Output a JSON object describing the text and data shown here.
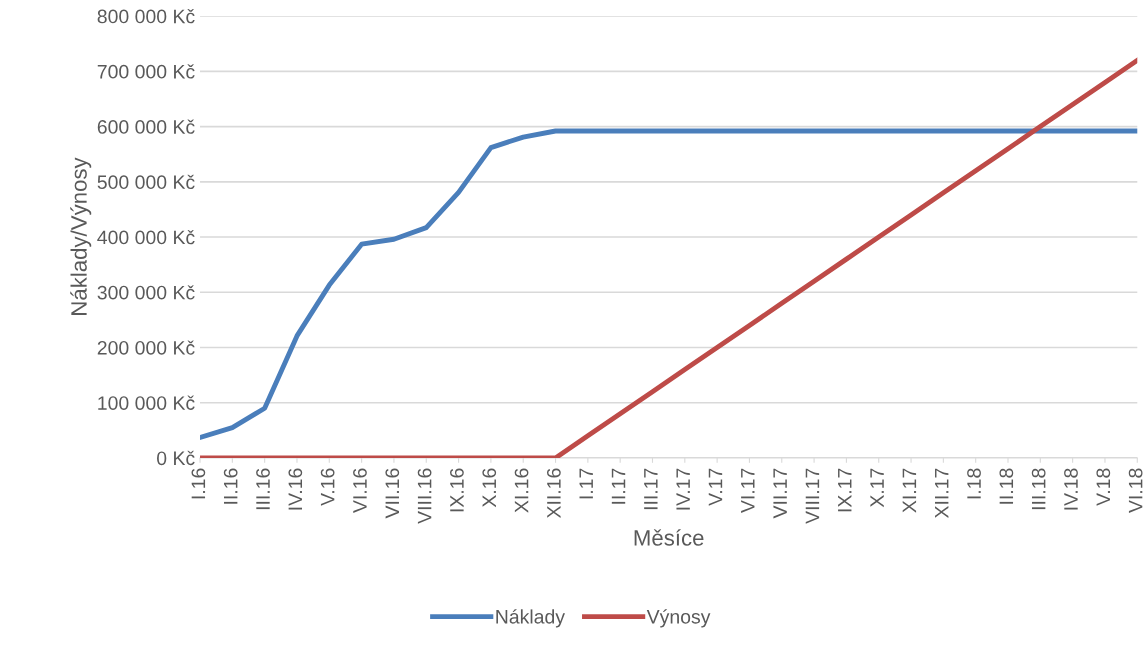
{
  "chart_data": {
    "type": "line",
    "xlabel": "Měsíce",
    "ylabel": "Náklady/Výnosy",
    "categories": [
      "I.16",
      "II.16",
      "III.16",
      "IV.16",
      "V.16",
      "VI.16",
      "VII.16",
      "VIII.16",
      "IX.16",
      "X.16",
      "XI.16",
      "XII.16",
      "I.17",
      "II.17",
      "III.17",
      "IV.17",
      "V.17",
      "VI.17",
      "VII.17",
      "VIII.17",
      "IX.17",
      "X.17",
      "XI.17",
      "XII.17",
      "I.18",
      "II.18",
      "III.18",
      "IV.18",
      "V.18",
      "VI.18"
    ],
    "series": [
      {
        "name": "Náklady",
        "color": "#4a7ebb",
        "values": [
          37000,
          55000,
          90000,
          221000,
          313000,
          387000,
          396000,
          417000,
          481000,
          562000,
          581000,
          592000,
          592000,
          592000,
          592000,
          592000,
          592000,
          592000,
          592000,
          592000,
          592000,
          592000,
          592000,
          592000,
          592000,
          592000,
          592000,
          592000,
          592000,
          592000
        ]
      },
      {
        "name": "Výnosy",
        "color": "#be4b48",
        "values": [
          0,
          0,
          0,
          0,
          0,
          0,
          0,
          0,
          0,
          0,
          0,
          0,
          40000,
          80000,
          120000,
          160000,
          200000,
          240000,
          280000,
          320000,
          360000,
          400000,
          440000,
          480000,
          520000,
          560000,
          600000,
          640000,
          680000,
          720000
        ]
      }
    ],
    "ylim": [
      0,
      800000
    ],
    "yticks": [
      {
        "value": 0,
        "label": "0 Kč"
      },
      {
        "value": 100000,
        "label": "100 000 Kč"
      },
      {
        "value": 200000,
        "label": "200 000 Kč"
      },
      {
        "value": 300000,
        "label": "300 000 Kč"
      },
      {
        "value": 400000,
        "label": "400 000 Kč"
      },
      {
        "value": 500000,
        "label": "500 000 Kč"
      },
      {
        "value": 600000,
        "label": "600 000 Kč"
      },
      {
        "value": 700000,
        "label": "700 000 Kč"
      },
      {
        "value": 800000,
        "label": "800 000 Kč"
      }
    ],
    "grid": "y",
    "legend": "bottom",
    "marker": "none",
    "line_style": "solid"
  }
}
